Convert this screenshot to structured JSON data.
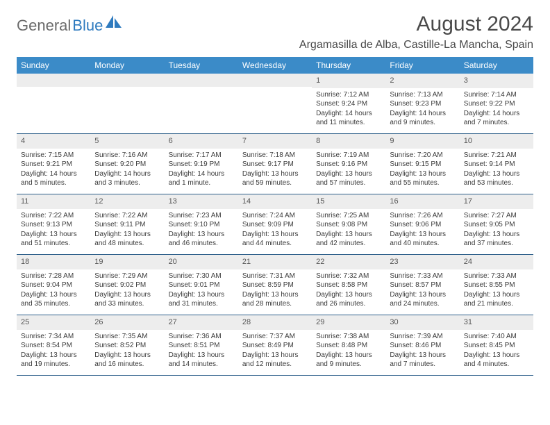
{
  "brand": {
    "part1": "General",
    "part2": "Blue"
  },
  "title": "August 2024",
  "location": "Argamasilla de Alba, Castille-La Mancha, Spain",
  "colors": {
    "header_bg": "#3b8bc8",
    "header_text": "#ffffff",
    "daynum_bg": "#ededed",
    "week_border": "#2d5f8a",
    "brand_gray": "#6a6a6a",
    "brand_blue": "#2f7bbf",
    "text": "#3a3a3a"
  },
  "fonts": {
    "title_size_pt": 22,
    "location_size_pt": 12,
    "dow_size_pt": 9,
    "cell_size_pt": 7.5
  },
  "dow": [
    "Sunday",
    "Monday",
    "Tuesday",
    "Wednesday",
    "Thursday",
    "Friday",
    "Saturday"
  ],
  "weeks": [
    [
      {
        "n": "",
        "sr": "",
        "ss": "",
        "dl": ""
      },
      {
        "n": "",
        "sr": "",
        "ss": "",
        "dl": ""
      },
      {
        "n": "",
        "sr": "",
        "ss": "",
        "dl": ""
      },
      {
        "n": "",
        "sr": "",
        "ss": "",
        "dl": ""
      },
      {
        "n": "1",
        "sr": "Sunrise: 7:12 AM",
        "ss": "Sunset: 9:24 PM",
        "dl": "Daylight: 14 hours and 11 minutes."
      },
      {
        "n": "2",
        "sr": "Sunrise: 7:13 AM",
        "ss": "Sunset: 9:23 PM",
        "dl": "Daylight: 14 hours and 9 minutes."
      },
      {
        "n": "3",
        "sr": "Sunrise: 7:14 AM",
        "ss": "Sunset: 9:22 PM",
        "dl": "Daylight: 14 hours and 7 minutes."
      }
    ],
    [
      {
        "n": "4",
        "sr": "Sunrise: 7:15 AM",
        "ss": "Sunset: 9:21 PM",
        "dl": "Daylight: 14 hours and 5 minutes."
      },
      {
        "n": "5",
        "sr": "Sunrise: 7:16 AM",
        "ss": "Sunset: 9:20 PM",
        "dl": "Daylight: 14 hours and 3 minutes."
      },
      {
        "n": "6",
        "sr": "Sunrise: 7:17 AM",
        "ss": "Sunset: 9:19 PM",
        "dl": "Daylight: 14 hours and 1 minute."
      },
      {
        "n": "7",
        "sr": "Sunrise: 7:18 AM",
        "ss": "Sunset: 9:17 PM",
        "dl": "Daylight: 13 hours and 59 minutes."
      },
      {
        "n": "8",
        "sr": "Sunrise: 7:19 AM",
        "ss": "Sunset: 9:16 PM",
        "dl": "Daylight: 13 hours and 57 minutes."
      },
      {
        "n": "9",
        "sr": "Sunrise: 7:20 AM",
        "ss": "Sunset: 9:15 PM",
        "dl": "Daylight: 13 hours and 55 minutes."
      },
      {
        "n": "10",
        "sr": "Sunrise: 7:21 AM",
        "ss": "Sunset: 9:14 PM",
        "dl": "Daylight: 13 hours and 53 minutes."
      }
    ],
    [
      {
        "n": "11",
        "sr": "Sunrise: 7:22 AM",
        "ss": "Sunset: 9:13 PM",
        "dl": "Daylight: 13 hours and 51 minutes."
      },
      {
        "n": "12",
        "sr": "Sunrise: 7:22 AM",
        "ss": "Sunset: 9:11 PM",
        "dl": "Daylight: 13 hours and 48 minutes."
      },
      {
        "n": "13",
        "sr": "Sunrise: 7:23 AM",
        "ss": "Sunset: 9:10 PM",
        "dl": "Daylight: 13 hours and 46 minutes."
      },
      {
        "n": "14",
        "sr": "Sunrise: 7:24 AM",
        "ss": "Sunset: 9:09 PM",
        "dl": "Daylight: 13 hours and 44 minutes."
      },
      {
        "n": "15",
        "sr": "Sunrise: 7:25 AM",
        "ss": "Sunset: 9:08 PM",
        "dl": "Daylight: 13 hours and 42 minutes."
      },
      {
        "n": "16",
        "sr": "Sunrise: 7:26 AM",
        "ss": "Sunset: 9:06 PM",
        "dl": "Daylight: 13 hours and 40 minutes."
      },
      {
        "n": "17",
        "sr": "Sunrise: 7:27 AM",
        "ss": "Sunset: 9:05 PM",
        "dl": "Daylight: 13 hours and 37 minutes."
      }
    ],
    [
      {
        "n": "18",
        "sr": "Sunrise: 7:28 AM",
        "ss": "Sunset: 9:04 PM",
        "dl": "Daylight: 13 hours and 35 minutes."
      },
      {
        "n": "19",
        "sr": "Sunrise: 7:29 AM",
        "ss": "Sunset: 9:02 PM",
        "dl": "Daylight: 13 hours and 33 minutes."
      },
      {
        "n": "20",
        "sr": "Sunrise: 7:30 AM",
        "ss": "Sunset: 9:01 PM",
        "dl": "Daylight: 13 hours and 31 minutes."
      },
      {
        "n": "21",
        "sr": "Sunrise: 7:31 AM",
        "ss": "Sunset: 8:59 PM",
        "dl": "Daylight: 13 hours and 28 minutes."
      },
      {
        "n": "22",
        "sr": "Sunrise: 7:32 AM",
        "ss": "Sunset: 8:58 PM",
        "dl": "Daylight: 13 hours and 26 minutes."
      },
      {
        "n": "23",
        "sr": "Sunrise: 7:33 AM",
        "ss": "Sunset: 8:57 PM",
        "dl": "Daylight: 13 hours and 24 minutes."
      },
      {
        "n": "24",
        "sr": "Sunrise: 7:33 AM",
        "ss": "Sunset: 8:55 PM",
        "dl": "Daylight: 13 hours and 21 minutes."
      }
    ],
    [
      {
        "n": "25",
        "sr": "Sunrise: 7:34 AM",
        "ss": "Sunset: 8:54 PM",
        "dl": "Daylight: 13 hours and 19 minutes."
      },
      {
        "n": "26",
        "sr": "Sunrise: 7:35 AM",
        "ss": "Sunset: 8:52 PM",
        "dl": "Daylight: 13 hours and 16 minutes."
      },
      {
        "n": "27",
        "sr": "Sunrise: 7:36 AM",
        "ss": "Sunset: 8:51 PM",
        "dl": "Daylight: 13 hours and 14 minutes."
      },
      {
        "n": "28",
        "sr": "Sunrise: 7:37 AM",
        "ss": "Sunset: 8:49 PM",
        "dl": "Daylight: 13 hours and 12 minutes."
      },
      {
        "n": "29",
        "sr": "Sunrise: 7:38 AM",
        "ss": "Sunset: 8:48 PM",
        "dl": "Daylight: 13 hours and 9 minutes."
      },
      {
        "n": "30",
        "sr": "Sunrise: 7:39 AM",
        "ss": "Sunset: 8:46 PM",
        "dl": "Daylight: 13 hours and 7 minutes."
      },
      {
        "n": "31",
        "sr": "Sunrise: 7:40 AM",
        "ss": "Sunset: 8:45 PM",
        "dl": "Daylight: 13 hours and 4 minutes."
      }
    ]
  ]
}
